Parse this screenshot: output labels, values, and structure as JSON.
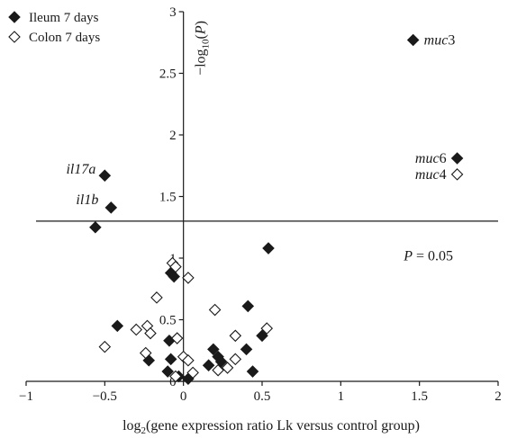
{
  "chart_data": {
    "type": "scatter",
    "title": "",
    "xlim": [
      -1,
      2
    ],
    "ylim": [
      0,
      3
    ],
    "x_ticks": [
      "-1",
      "-0.5",
      "0",
      "0.5",
      "1",
      "1.5",
      "2"
    ],
    "y_ticks": [
      "0",
      "0.5",
      "1",
      "1.5",
      "2",
      "2.5",
      "3"
    ],
    "xlabel": {
      "prefix": "log",
      "sub": "2",
      "rest": "(gene expression ratio Lk versus control group)"
    },
    "ylabel": {
      "prefix": "−log",
      "sub": "10",
      "rest": "(P)"
    },
    "grid": false,
    "legend_position": "top-left",
    "threshold": {
      "y": 1.3,
      "label_prefix": "P",
      "label_rest": " = 0.05"
    },
    "series": [
      {
        "name": "Ileum 7 days",
        "marker": "filled-diamond",
        "color": "#1a1a1a",
        "points": [
          {
            "x": 1.46,
            "y": 2.77,
            "label": "muc3",
            "label_italic": "muc",
            "label_plain": "3"
          },
          {
            "x": 1.74,
            "y": 1.81,
            "label": "muc6",
            "label_italic": "muc",
            "label_plain": "6"
          },
          {
            "x": -0.5,
            "y": 1.67,
            "label": "il17a",
            "label_italic": "il17a",
            "label_plain": ""
          },
          {
            "x": -0.46,
            "y": 1.41,
            "label": "il1b",
            "label_italic": "il1b",
            "label_plain": ""
          },
          {
            "x": -0.56,
            "y": 1.25
          },
          {
            "x": 0.54,
            "y": 1.08
          },
          {
            "x": -0.08,
            "y": 0.88
          },
          {
            "x": -0.06,
            "y": 0.85
          },
          {
            "x": 0.41,
            "y": 0.61
          },
          {
            "x": -0.42,
            "y": 0.45
          },
          {
            "x": -0.09,
            "y": 0.33
          },
          {
            "x": 0.5,
            "y": 0.37
          },
          {
            "x": -0.08,
            "y": 0.18
          },
          {
            "x": 0.19,
            "y": 0.26
          },
          {
            "x": 0.4,
            "y": 0.26
          },
          {
            "x": 0.22,
            "y": 0.2
          },
          {
            "x": 0.24,
            "y": 0.16
          },
          {
            "x": -0.22,
            "y": 0.17
          },
          {
            "x": 0.16,
            "y": 0.13
          },
          {
            "x": 0.44,
            "y": 0.08
          },
          {
            "x": -0.1,
            "y": 0.08
          },
          {
            "x": -0.03,
            "y": 0.04
          },
          {
            "x": 0.03,
            "y": 0.02
          }
        ]
      },
      {
        "name": "Colon 7 days",
        "marker": "open-diamond",
        "color": "#1a1a1a",
        "points": [
          {
            "x": 1.74,
            "y": 1.68,
            "label": "muc4",
            "label_italic": "muc",
            "label_plain": "4"
          },
          {
            "x": -0.07,
            "y": 0.96
          },
          {
            "x": -0.05,
            "y": 0.93
          },
          {
            "x": 0.03,
            "y": 0.84
          },
          {
            "x": -0.17,
            "y": 0.68
          },
          {
            "x": 0.2,
            "y": 0.58
          },
          {
            "x": -0.3,
            "y": 0.42
          },
          {
            "x": -0.23,
            "y": 0.45
          },
          {
            "x": -0.21,
            "y": 0.39
          },
          {
            "x": 0.53,
            "y": 0.43
          },
          {
            "x": 0.33,
            "y": 0.37
          },
          {
            "x": -0.04,
            "y": 0.35
          },
          {
            "x": -0.5,
            "y": 0.28
          },
          {
            "x": -0.24,
            "y": 0.23
          },
          {
            "x": 0.0,
            "y": 0.2
          },
          {
            "x": 0.33,
            "y": 0.18
          },
          {
            "x": 0.03,
            "y": 0.17
          },
          {
            "x": 0.28,
            "y": 0.11
          },
          {
            "x": 0.22,
            "y": 0.09
          },
          {
            "x": 0.06,
            "y": 0.07
          },
          {
            "x": -0.05,
            "y": 0.04
          }
        ]
      }
    ]
  }
}
